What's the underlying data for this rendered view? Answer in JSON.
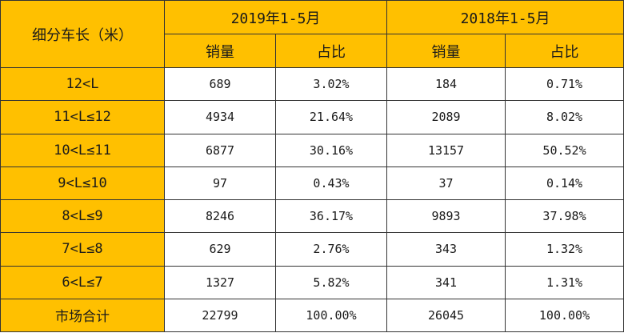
{
  "chart_data": {
    "type": "table",
    "corner_header": "细分车长（米）",
    "period_headers": [
      "2019年1-5月",
      "2018年1-5月"
    ],
    "sub_headers": [
      "销量",
      "占比",
      "销量",
      "占比"
    ],
    "rows": [
      {
        "label": "12<L",
        "values": [
          "689",
          "3.02%",
          "184",
          "0.71%"
        ]
      },
      {
        "label": "11<L≤12",
        "values": [
          "4934",
          "21.64%",
          "2089",
          "8.02%"
        ]
      },
      {
        "label": "10<L≤11",
        "values": [
          "6877",
          "30.16%",
          "13157",
          "50.52%"
        ]
      },
      {
        "label": "9<L≤10",
        "values": [
          "97",
          "0.43%",
          "37",
          "0.14%"
        ]
      },
      {
        "label": "8<L≤9",
        "values": [
          "8246",
          "36.17%",
          "9893",
          "37.98%"
        ]
      },
      {
        "label": "7<L≤8",
        "values": [
          "629",
          "2.76%",
          "343",
          "1.32%"
        ]
      },
      {
        "label": "6<L≤7",
        "values": [
          "1327",
          "5.82%",
          "341",
          "1.31%"
        ]
      },
      {
        "label": "市场合计",
        "values": [
          "22799",
          "100.00%",
          "26045",
          "100.00%"
        ]
      }
    ]
  },
  "colors": {
    "header_fill": "#FFC000",
    "cell_fill": "#FFFFFF",
    "border": "#333333"
  }
}
